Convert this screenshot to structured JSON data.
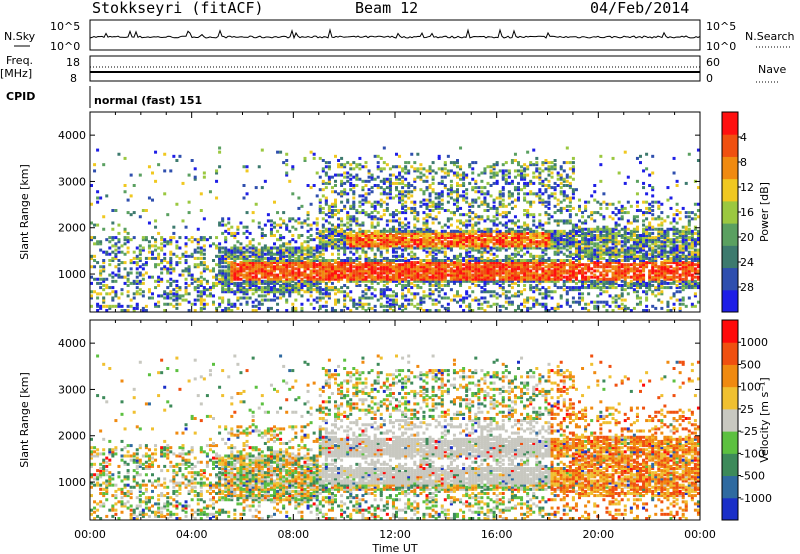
{
  "header": {
    "station": "Stokkseyri (fitACF)",
    "beam": "Beam 12",
    "date": "04/Feb/2014"
  },
  "top_panels": {
    "nsky_label": "N.Sky",
    "nsearch_label": "N.Search",
    "nsky_ticks": [
      "10^5",
      "10^0"
    ],
    "nsearch_ticks": [
      "10^5",
      "10^0"
    ],
    "freq_label": "Freq.",
    "freq_unit": "[MHz]",
    "freq_ticks": [
      "18",
      "8"
    ],
    "nave_ticks": [
      "60",
      "0"
    ],
    "nave_label": "Nave",
    "cpid_label": "CPID",
    "cpid_value": "normal (fast) 151"
  },
  "chart_data": [
    {
      "type": "heatmap",
      "name": "power",
      "ylabel": "Slant Range [km]",
      "ylim": [
        180,
        4500
      ],
      "yticks": [
        "1000",
        "2000",
        "3000",
        "4000"
      ],
      "xlim": [
        0,
        24
      ],
      "xticks": [
        "00:00",
        "04:00",
        "08:00",
        "12:00",
        "16:00",
        "20:00",
        "00:00"
      ],
      "colorbar": {
        "label": "Power [dB]",
        "ticks": [
          "4",
          "8",
          "12",
          "16",
          "20",
          "24",
          "28"
        ],
        "colors": [
          "#1e1ee6",
          "#2f4fae",
          "#3d7a6e",
          "#5aa060",
          "#9bc840",
          "#f0c820",
          "#f08a10",
          "#f05010",
          "#ff1010"
        ]
      }
    },
    {
      "type": "heatmap",
      "name": "velocity",
      "ylabel": "Slant Range [km]",
      "ylim": [
        180,
        4500
      ],
      "yticks": [
        "1000",
        "2000",
        "3000",
        "4000"
      ],
      "xlim": [
        0,
        24
      ],
      "xticks": [
        "00:00",
        "04:00",
        "08:00",
        "12:00",
        "16:00",
        "20:00",
        "00:00"
      ],
      "xlabel": "Time UT",
      "colorbar": {
        "label": "Velocity [m s⁻¹]",
        "ticks": [
          "1000",
          "500",
          "100",
          "25",
          "-25",
          "-100",
          "-500",
          "-1000"
        ],
        "colors": [
          "#1a2fc8",
          "#2f6aa0",
          "#3d8a5a",
          "#5cc040",
          "#c8c8c0",
          "#f0c030",
          "#f08a10",
          "#f05010",
          "#ff0a0a"
        ]
      }
    }
  ]
}
